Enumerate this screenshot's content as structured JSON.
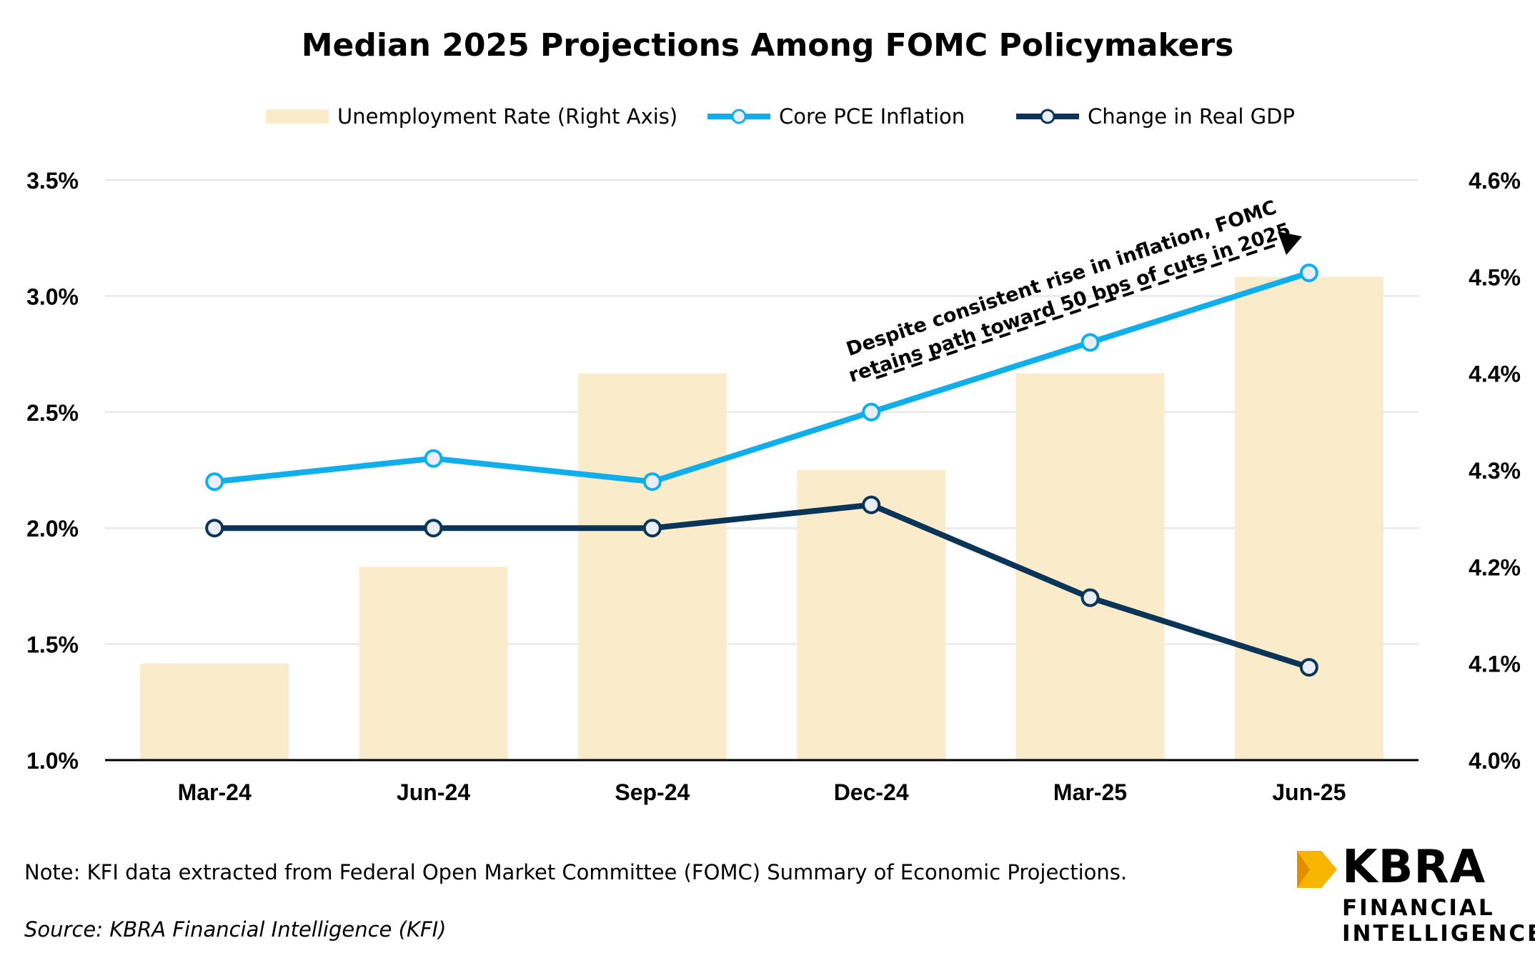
{
  "chart_data": {
    "type": "bar+line",
    "title": "Median 2025 Projections Among FOMC Policymakers",
    "categories": [
      "Mar-24",
      "Jun-24",
      "Sep-24",
      "Dec-24",
      "Mar-25",
      "Jun-25"
    ],
    "bars": {
      "name": "Unemployment Rate (Right Axis)",
      "axis": "right",
      "values": [
        4.1,
        4.2,
        4.4,
        4.3,
        4.4,
        4.5
      ],
      "color": "#FAEBCB"
    },
    "series": [
      {
        "name": "Core PCE Inflation",
        "axis": "left",
        "values": [
          2.2,
          2.3,
          2.2,
          2.5,
          2.8,
          3.1
        ],
        "color": "#11AEEC"
      },
      {
        "name": "Change in Real GDP",
        "axis": "left",
        "values": [
          2.0,
          2.0,
          2.0,
          2.1,
          1.7,
          1.4
        ],
        "color": "#0B3558"
      }
    ],
    "left_axis": {
      "ylim": [
        1.0,
        3.5
      ],
      "ticks": [
        "1.0%",
        "1.5%",
        "2.0%",
        "2.5%",
        "3.0%",
        "3.5%"
      ],
      "tick_values": [
        1.0,
        1.5,
        2.0,
        2.5,
        3.0,
        3.5
      ]
    },
    "right_axis": {
      "ylim": [
        4.0,
        4.6
      ],
      "ticks": [
        "4.0%",
        "4.1%",
        "4.2%",
        "4.3%",
        "4.4%",
        "4.5%",
        "4.6%"
      ],
      "tick_values": [
        4.0,
        4.1,
        4.2,
        4.3,
        4.4,
        4.5,
        4.6
      ]
    },
    "annotation": {
      "lines": [
        "Despite consistent rise in inflation, FOMC",
        "retains path toward 50 bps of cuts in 2025"
      ]
    },
    "legend_position": "top-center",
    "grid": true
  },
  "note": "Note: KFI data extracted from Federal Open Market Committee (FOMC) Summary of Economic Projections.",
  "source": "Source: KBRA Financial Intelligence (KFI)",
  "logo": {
    "name": "KBRA",
    "line1": "FINANCIAL",
    "line2": "INTELLIGENCE",
    "accent": "#F7B500"
  }
}
